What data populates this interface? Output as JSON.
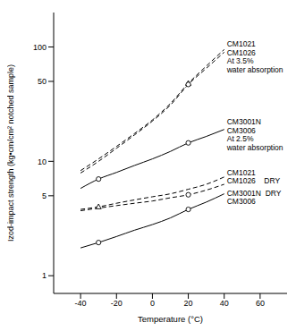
{
  "chart_data": {
    "type": "line",
    "x_label": "Temperature (°C)",
    "y_label": "Izod-impact strength (kg•cm/cm² notched sample)",
    "x": [
      -40,
      -30,
      -20,
      -10,
      0,
      10,
      20,
      30,
      40
    ],
    "xlim": [
      -55,
      75
    ],
    "xticks": [
      -40,
      -20,
      0,
      20,
      40,
      60
    ],
    "ylim": [
      0.7,
      200
    ],
    "yticks": [
      1,
      5,
      10,
      50,
      100
    ],
    "log": "y",
    "grid": false,
    "series": [
      {
        "color": "#000000",
        "line_style": "dashed",
        "marker": "triangle",
        "marked_x": [
          20
        ],
        "values": [
          8.3,
          10.5,
          13.5,
          17.5,
          23,
          32,
          48,
          68,
          95
        ]
      },
      {
        "color": "#000000",
        "line_style": "dashed",
        "marker": "circle",
        "marked_x": [
          20
        ],
        "values": [
          7.9,
          10,
          13,
          17,
          22.5,
          31,
          47,
          65,
          90
        ]
      },
      {
        "color": "#000000",
        "line_style": "solid",
        "marker": "circle",
        "marked_x": [
          -30,
          20
        ],
        "values": [
          5.8,
          7,
          8,
          9.2,
          10.5,
          12.2,
          14.5,
          16.5,
          19
        ]
      },
      {
        "color": "#000000",
        "line_style": "dashed",
        "marker": "triangle",
        "marked_x": [
          -30
        ],
        "values": [
          3.8,
          4,
          4.3,
          4.6,
          4.9,
          5.2,
          5.7,
          6.3,
          7.3
        ]
      },
      {
        "color": "#000000",
        "line_style": "dashed",
        "marker": "circle",
        "marked_x": [
          20
        ],
        "values": [
          3.7,
          3.9,
          4.1,
          4.3,
          4.5,
          4.8,
          5.1,
          5.6,
          6.3
        ]
      },
      {
        "color": "#000000",
        "line_style": "solid",
        "marker": "circle",
        "marked_x": [
          -30,
          20
        ],
        "values": [
          1.75,
          1.95,
          2.2,
          2.5,
          2.8,
          3.2,
          3.8,
          4.4,
          5.2
        ]
      }
    ],
    "annotations": [
      {
        "x": 40,
        "y": 100,
        "lines": [
          "CM1021",
          "CM1026",
          "At 3.5%",
          "water absorption"
        ]
      },
      {
        "x": 40,
        "y": 21,
        "lines": [
          "CM3001N",
          "CM3006",
          "At 2.5%",
          "water absorption"
        ]
      },
      {
        "x": 40,
        "y": 7.6,
        "lines": [
          "CM1021",
          "CM1026    DRY"
        ]
      },
      {
        "x": 40,
        "y": 5.0,
        "lines": [
          "CM3001N  DRY",
          "CM3006"
        ]
      }
    ]
  }
}
